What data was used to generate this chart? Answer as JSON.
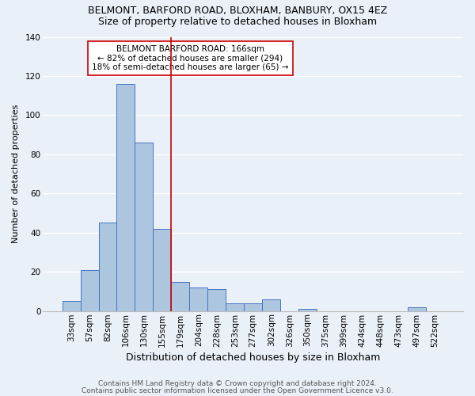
{
  "title1": "BELMONT, BARFORD ROAD, BLOXHAM, BANBURY, OX15 4EZ",
  "title2": "Size of property relative to detached houses in Bloxham",
  "xlabel": "Distribution of detached houses by size in Bloxham",
  "ylabel": "Number of detached properties",
  "categories": [
    "33sqm",
    "57sqm",
    "82sqm",
    "106sqm",
    "130sqm",
    "155sqm",
    "179sqm",
    "204sqm",
    "228sqm",
    "253sqm",
    "277sqm",
    "302sqm",
    "326sqm",
    "350sqm",
    "375sqm",
    "399sqm",
    "424sqm",
    "448sqm",
    "473sqm",
    "497sqm",
    "522sqm"
  ],
  "values": [
    5,
    21,
    45,
    116,
    86,
    42,
    15,
    12,
    11,
    4,
    4,
    6,
    0,
    1,
    0,
    0,
    0,
    0,
    0,
    2,
    0
  ],
  "bar_color": "#adc6e0",
  "bar_edge_color": "#4472c4",
  "background_color": "#eaf0f8",
  "grid_color": "#ffffff",
  "vline_x": 5.5,
  "vline_color": "#cc0000",
  "annotation_text": "BELMONT BARFORD ROAD: 166sqm\n← 82% of detached houses are smaller (294)\n18% of semi-detached houses are larger (65) →",
  "annotation_box_color": "#ffffff",
  "annotation_box_edge": "#cc0000",
  "footer1": "Contains HM Land Registry data © Crown copyright and database right 2024.",
  "footer2": "Contains public sector information licensed under the Open Government Licence v3.0.",
  "ylim": [
    0,
    140
  ],
  "yticks": [
    0,
    20,
    40,
    60,
    80,
    100,
    120,
    140
  ],
  "title1_fontsize": 9,
  "title2_fontsize": 9,
  "xlabel_fontsize": 9,
  "ylabel_fontsize": 8,
  "tick_fontsize": 7.5,
  "annotation_fontsize": 7.5,
  "footer_fontsize": 6.5
}
